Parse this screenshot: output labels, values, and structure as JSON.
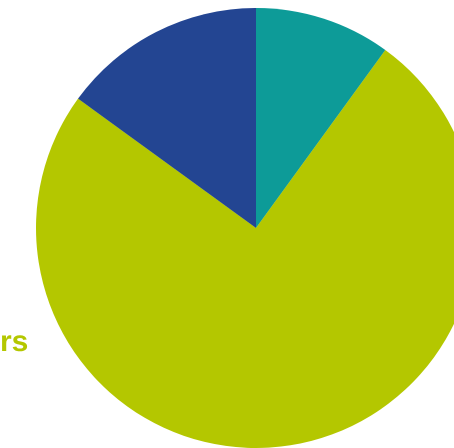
{
  "chart_data": {
    "type": "pie",
    "title": "",
    "slices": [
      {
        "label": "",
        "value": 10,
        "color": "#0d9b98"
      },
      {
        "label": "",
        "value": 75,
        "color": "#b4c700"
      },
      {
        "label": "",
        "value": 15,
        "color": "#234592"
      }
    ],
    "start_angle_deg": 0,
    "direction": "clockwise"
  },
  "label_fragment": {
    "text": "rs",
    "color": "#b4c700"
  }
}
